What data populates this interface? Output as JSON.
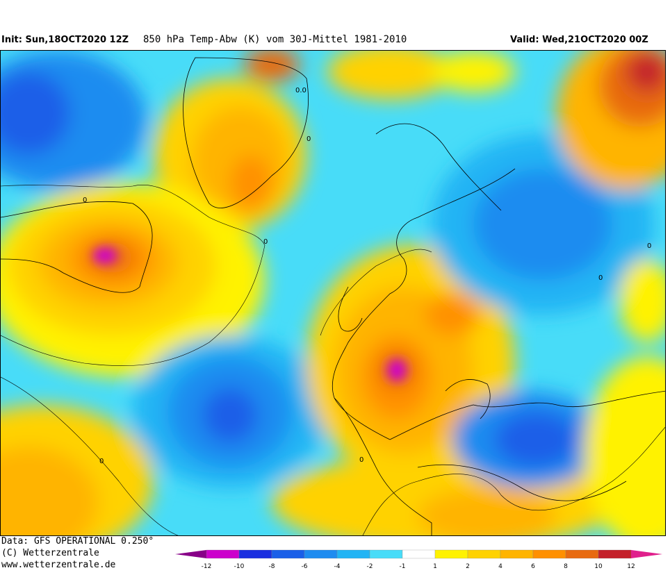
{
  "header": {
    "init": "Init: Sun,18OCT2020 12Z",
    "title": "850 hPa Temp-Abw (K) vom 30J-Mittel 1981-2010",
    "valid": "Valid: Wed,21OCT2020 00Z"
  },
  "footer": {
    "data_line": "Data: GFS OPERATIONAL 0.250°",
    "copyright": "(C) Wetterzentrale",
    "url": "www.wetterzentrale.de"
  },
  "legend": {
    "ticks": [
      "-12",
      "-10",
      "-8",
      "-6",
      "-4",
      "-2",
      "-1",
      "1",
      "2",
      "4",
      "6",
      "8",
      "10",
      "12"
    ],
    "colors": [
      "#cc00cc",
      "#1a2fe0",
      "#1a5fe8",
      "#1e8cf0",
      "#22b4f4",
      "#48dcf8",
      "#ffffff",
      "#fff200",
      "#ffd200",
      "#ffb400",
      "#ff9000",
      "#e86a10",
      "#c4202a"
    ],
    "low_end_color": "#880088",
    "high_end_color": "#e0208c"
  },
  "map": {
    "contour_labels": [
      "0.0",
      "0",
      "0",
      "0",
      "0",
      "0",
      "0",
      "0"
    ]
  }
}
